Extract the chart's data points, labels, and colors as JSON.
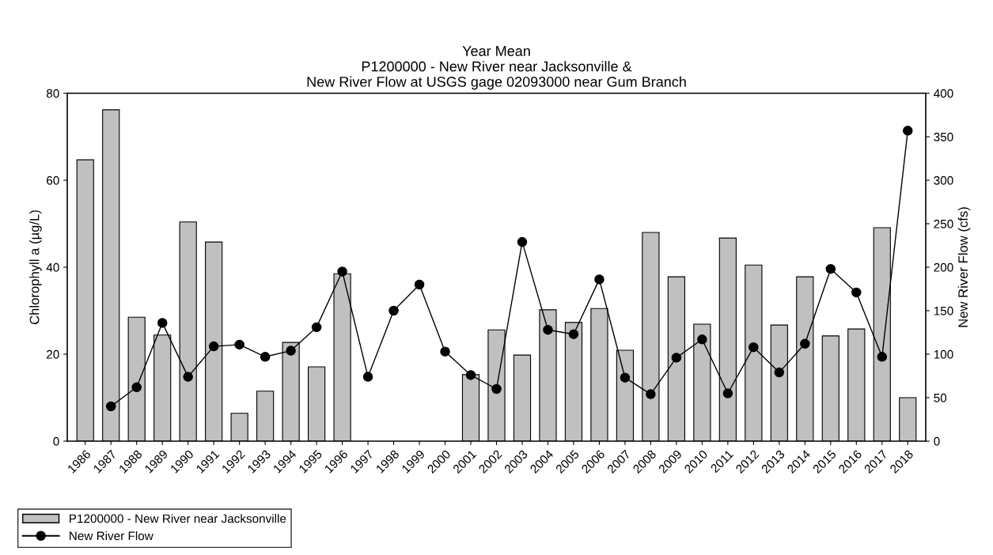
{
  "chart_data": {
    "type": "bar",
    "title": "Year Mean\nP1200000 - New River near Jacksonville &\nNew River Flow at USGS gage 02093000 near Gum Branch",
    "ylabel": "Chlorophyll a (µg/L)",
    "y2label": "New River Flow (cfs)",
    "categories": [
      "1986",
      "1987",
      "1988",
      "1989",
      "1990",
      "1991",
      "1992",
      "1993",
      "1994",
      "1995",
      "1996",
      "1997",
      "1998",
      "1999",
      "2000",
      "2001",
      "2002",
      "2003",
      "2004",
      "2005",
      "2006",
      "2007",
      "2008",
      "2009",
      "2010",
      "2011",
      "2012",
      "2013",
      "2014",
      "2015",
      "2016",
      "2017",
      "2018"
    ],
    "series": [
      {
        "name": "P1200000 - New River near Jacksonville",
        "color": "#c0c0c0",
        "values": [
          64.7,
          76.2,
          28.5,
          24.4,
          50.4,
          45.8,
          6.4,
          11.5,
          22.7,
          17.1,
          38.5,
          null,
          null,
          null,
          null,
          15.3,
          25.6,
          19.8,
          30.2,
          27.3,
          30.5,
          20.9,
          48.0,
          37.8,
          26.9,
          46.7,
          40.5,
          26.7,
          37.8,
          24.2,
          25.8,
          49.1,
          10.0
        ]
      },
      {
        "name": "New River Flow",
        "type": "line",
        "axis": "y2",
        "color": "#000000",
        "values": [
          null,
          40,
          62,
          136,
          74,
          109,
          111,
          97,
          104,
          131,
          195,
          74,
          150,
          180,
          103,
          76,
          60,
          229,
          128,
          123,
          186,
          73,
          54,
          96,
          117,
          55,
          108,
          79,
          112,
          198,
          171,
          97,
          357
        ]
      }
    ],
    "ylim": [
      0,
      80
    ],
    "yticks": [
      0,
      20,
      40,
      60,
      80
    ],
    "y2lim": [
      0,
      400
    ],
    "y2ticks": [
      0,
      50,
      100,
      150,
      200,
      250,
      300,
      350,
      400
    ],
    "marker": "circle",
    "line_style": "solid",
    "grid": false,
    "legend": "bottom left"
  }
}
